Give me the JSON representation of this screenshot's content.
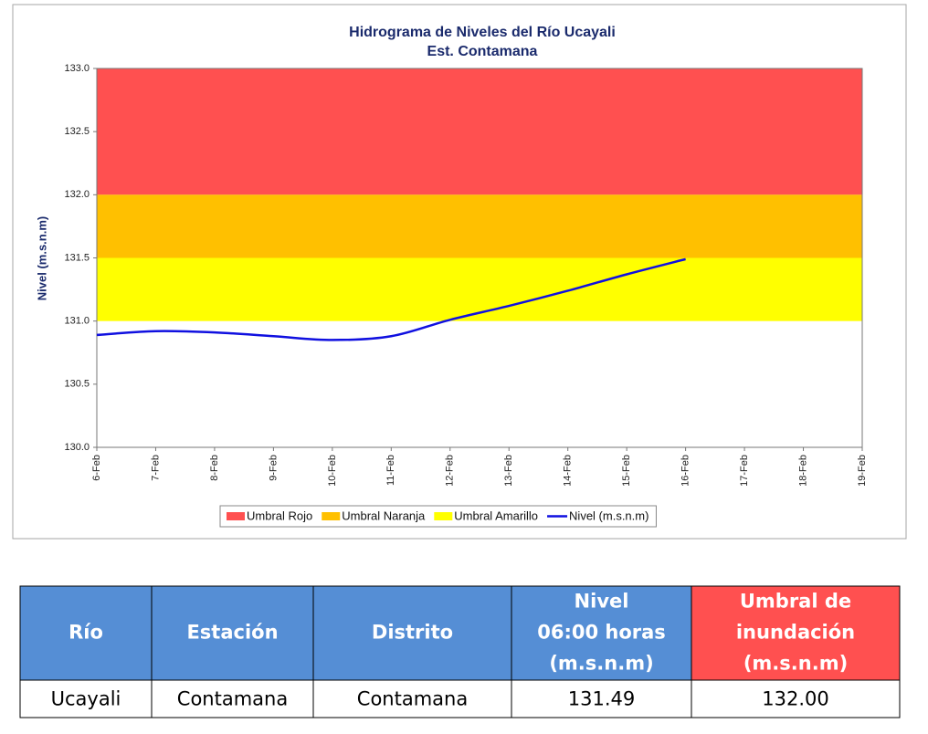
{
  "chart_data": {
    "type": "line",
    "title": "Hidrograma de Niveles del Río Ucayali",
    "subtitle": "Est. Contamana",
    "y_label": "Nivel (m.s.n.m)",
    "categories": [
      "6-Feb",
      "7-Feb",
      "8-Feb",
      "9-Feb",
      "10-Feb",
      "11-Feb",
      "12-Feb",
      "13-Feb",
      "14-Feb",
      "15-Feb",
      "16-Feb",
      "17-Feb",
      "18-Feb",
      "19-Feb"
    ],
    "bands": [
      {
        "name": "Umbral Rojo",
        "color": "#ff5050",
        "from": 132,
        "to": 133
      },
      {
        "name": "Umbral Naranja",
        "color": "#ffc000",
        "from": 131.5,
        "to": 132
      },
      {
        "name": "Umbral Amarillo",
        "color": "#ffff00",
        "from": 131,
        "to": 131.5
      }
    ],
    "series": [
      {
        "name": "Nivel (m.s.n.m)",
        "color": "#1010e0",
        "values": [
          130.89,
          130.92,
          130.91,
          130.88,
          130.85,
          130.88,
          131.01,
          131.12,
          131.24,
          131.37,
          131.49,
          null,
          null,
          null
        ]
      }
    ],
    "ylim": [
      130,
      133
    ],
    "yticks": [
      {
        "value": 130,
        "label": "130.0"
      },
      {
        "value": 130.5,
        "label": "130.5"
      },
      {
        "value": 131,
        "label": "131.0"
      },
      {
        "value": 131.5,
        "label": "131.5"
      },
      {
        "value": 132,
        "label": "132.0"
      },
      {
        "value": 132.5,
        "label": "132.5"
      },
      {
        "value": 133,
        "label": "133.0"
      }
    ],
    "legend": "bottom"
  },
  "table": {
    "headers": [
      [
        "Río"
      ],
      [
        "Estación"
      ],
      [
        "Distrito"
      ],
      [
        "Nivel",
        "06:00 horas",
        "(m.s.n.m)"
      ],
      [
        "Umbral de",
        "inundación",
        "(m.s.n.m)"
      ]
    ],
    "header_colors": [
      "#558ed5",
      "#558ed5",
      "#558ed5",
      "#558ed5",
      "#ff5050"
    ],
    "rows": [
      [
        "Ucayali",
        "Contamana",
        "Contamana",
        "131.49",
        "132.00"
      ]
    ]
  }
}
